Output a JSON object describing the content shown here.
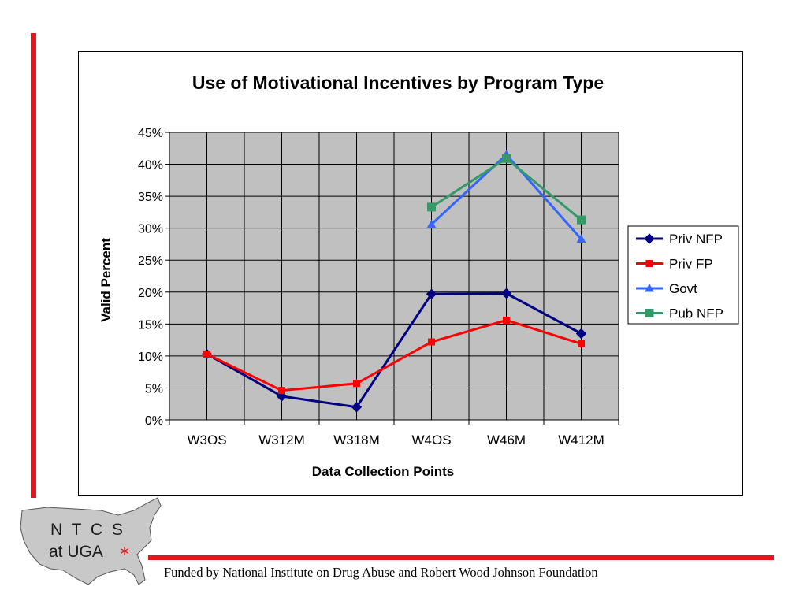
{
  "footer": {
    "funding_text": "Funded by National Institute on Drug Abuse and Robert Wood Johnson Foundation"
  },
  "logo": {
    "line1": "N T C S",
    "line2": "at UGA",
    "star": "*",
    "map_color": "#c8c8c8"
  },
  "colors": {
    "accent_red": "#e8141b",
    "plot_bg": "#c0c0c0"
  },
  "chart_data": {
    "type": "line",
    "title": "Use of Motivational Incentives by Program Type",
    "xlabel": "Data Collection Points",
    "ylabel": "Valid Percent",
    "categories": [
      "W3OS",
      "W312M",
      "W318M",
      "W4OS",
      "W46M",
      "W412M"
    ],
    "ylim": [
      0,
      45
    ],
    "yticks": [
      0,
      5,
      10,
      15,
      20,
      25,
      30,
      35,
      40,
      45
    ],
    "ytick_labels": [
      "0%",
      "5%",
      "10%",
      "15%",
      "20%",
      "25%",
      "30%",
      "35%",
      "40%",
      "45%"
    ],
    "grid": true,
    "legend_position": "right",
    "series": [
      {
        "name": "Priv NFP",
        "color": "#000080",
        "marker": "diamond",
        "values": [
          10.3,
          3.7,
          2.0,
          19.7,
          19.8,
          13.5
        ]
      },
      {
        "name": "Priv FP",
        "color": "#ff0000",
        "marker": "square",
        "values": [
          10.3,
          4.6,
          5.7,
          12.2,
          15.6,
          11.9
        ]
      },
      {
        "name": "Govt",
        "color": "#3366ff",
        "marker": "triangle",
        "values": [
          null,
          null,
          null,
          30.6,
          41.5,
          28.3
        ]
      },
      {
        "name": "Pub NFP",
        "color": "#339966",
        "marker": "square",
        "values": [
          null,
          null,
          null,
          33.3,
          40.9,
          31.3
        ]
      }
    ]
  }
}
